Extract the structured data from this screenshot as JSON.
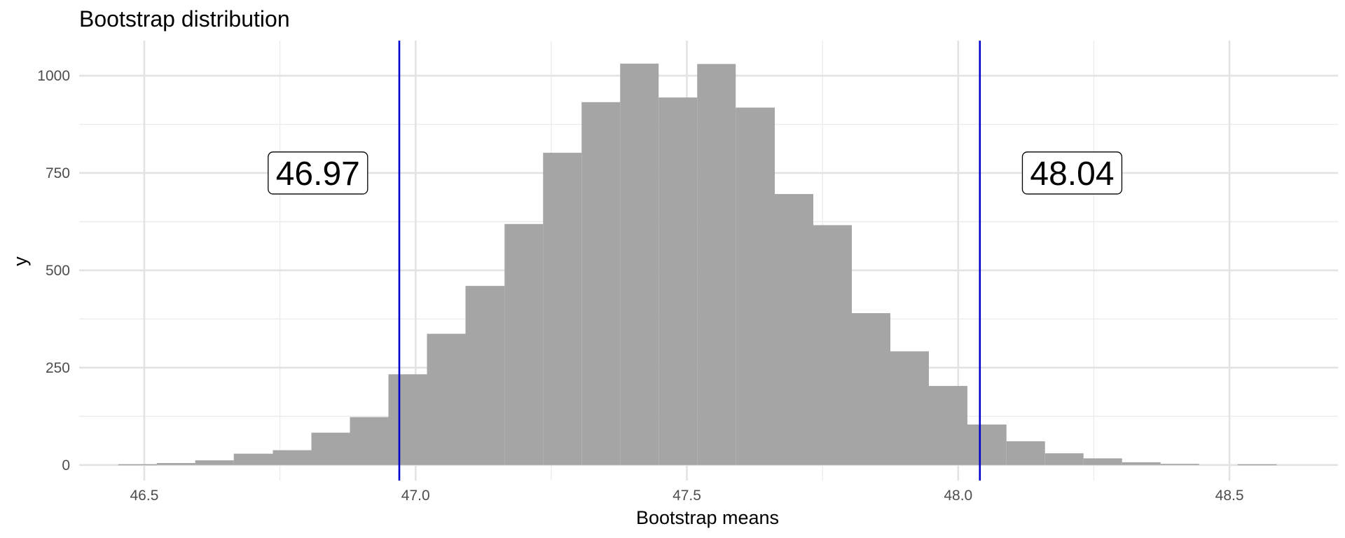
{
  "chart_data": {
    "type": "histogram",
    "title": "Bootstrap distribution",
    "xlabel": "Bootstrap means",
    "ylabel": "y",
    "xlim": [
      46.38,
      48.7
    ],
    "ylim": [
      -40,
      1090
    ],
    "x_ticks": [
      46.5,
      47.0,
      47.5,
      48.0,
      48.5
    ],
    "y_ticks": [
      0,
      250,
      500,
      750,
      1000
    ],
    "grid": true,
    "bar_color": "#a3a3a3",
    "bins": [
      {
        "x0": 46.452,
        "x1": 46.523,
        "count": 2
      },
      {
        "x0": 46.523,
        "x1": 46.594,
        "count": 5
      },
      {
        "x0": 46.594,
        "x1": 46.665,
        "count": 12
      },
      {
        "x0": 46.665,
        "x1": 46.737,
        "count": 29
      },
      {
        "x0": 46.737,
        "x1": 46.808,
        "count": 38
      },
      {
        "x0": 46.808,
        "x1": 46.879,
        "count": 83
      },
      {
        "x0": 46.879,
        "x1": 46.95,
        "count": 123
      },
      {
        "x0": 46.95,
        "x1": 47.021,
        "count": 233
      },
      {
        "x0": 47.021,
        "x1": 47.092,
        "count": 337
      },
      {
        "x0": 47.092,
        "x1": 47.164,
        "count": 460
      },
      {
        "x0": 47.164,
        "x1": 47.235,
        "count": 619
      },
      {
        "x0": 47.235,
        "x1": 47.306,
        "count": 802
      },
      {
        "x0": 47.306,
        "x1": 47.377,
        "count": 932
      },
      {
        "x0": 47.377,
        "x1": 47.448,
        "count": 1031
      },
      {
        "x0": 47.448,
        "x1": 47.519,
        "count": 944
      },
      {
        "x0": 47.519,
        "x1": 47.59,
        "count": 1030
      },
      {
        "x0": 47.59,
        "x1": 47.662,
        "count": 918
      },
      {
        "x0": 47.662,
        "x1": 47.733,
        "count": 696
      },
      {
        "x0": 47.733,
        "x1": 47.804,
        "count": 616
      },
      {
        "x0": 47.804,
        "x1": 47.875,
        "count": 390
      },
      {
        "x0": 47.875,
        "x1": 47.946,
        "count": 292
      },
      {
        "x0": 47.946,
        "x1": 48.017,
        "count": 203
      },
      {
        "x0": 48.017,
        "x1": 48.089,
        "count": 104
      },
      {
        "x0": 48.089,
        "x1": 48.16,
        "count": 61
      },
      {
        "x0": 48.16,
        "x1": 48.231,
        "count": 30
      },
      {
        "x0": 48.231,
        "x1": 48.302,
        "count": 17
      },
      {
        "x0": 48.302,
        "x1": 48.373,
        "count": 7
      },
      {
        "x0": 48.373,
        "x1": 48.444,
        "count": 3
      },
      {
        "x0": 48.444,
        "x1": 48.515,
        "count": 0
      },
      {
        "x0": 48.515,
        "x1": 48.587,
        "count": 2
      }
    ],
    "vlines": [
      {
        "x": 46.97,
        "color": "#0000cc"
      },
      {
        "x": 48.04,
        "color": "#0000cc"
      }
    ],
    "annotations": [
      {
        "text": "46.97",
        "x": 46.82,
        "y": 750
      },
      {
        "text": "48.04",
        "x": 48.21,
        "y": 750
      }
    ]
  }
}
